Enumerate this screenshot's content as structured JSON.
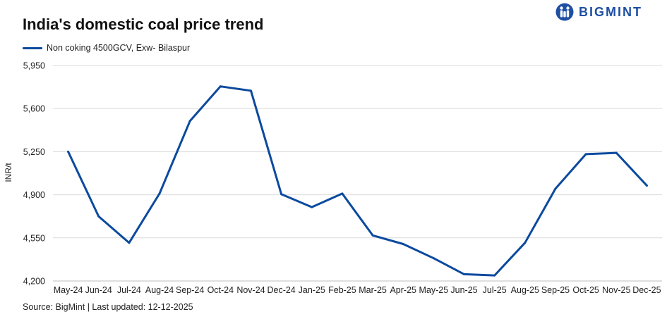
{
  "chart_data": {
    "type": "line",
    "title": "India's domestic coal price trend",
    "xlabel": "",
    "ylabel": "INR/t",
    "ylim": [
      4200,
      5950
    ],
    "yticks": [
      4200,
      4550,
      4900,
      5250,
      5600,
      5950
    ],
    "ytick_labels": [
      "4,200",
      "4,550",
      "4,900",
      "5,250",
      "5,600",
      "5,950"
    ],
    "grid": true,
    "legend_position": "top-left",
    "categories": [
      "May-24",
      "Jun-24",
      "Jul-24",
      "Aug-24",
      "Sep-24",
      "Oct-24",
      "Nov-24",
      "Dec-24",
      "Jan-25",
      "Feb-25",
      "Mar-25",
      "Apr-25",
      "May-25",
      "Jun-25",
      "Jul-25",
      "Aug-25",
      "Sep-25",
      "Oct-25",
      "Nov-25",
      "Dec-25"
    ],
    "series": [
      {
        "name": "Non coking 4500GCV, Exw- Bilaspur",
        "color": "#0b4a9e",
        "values": [
          5250,
          4725,
          4510,
          4910,
          5500,
          5780,
          5745,
          4905,
          4800,
          4910,
          4570,
          4500,
          4385,
          4255,
          4245,
          4510,
          4950,
          5230,
          5240,
          4975
        ]
      }
    ]
  },
  "header": {
    "title": "India's domestic coal price trend",
    "brand_name": "BIGMINT",
    "brand_icon": "bigmint-logo-icon"
  },
  "legend": {
    "label": "Non coking 4500GCV, Exw- Bilaspur"
  },
  "footer": {
    "source": "Source: BigMint | Last updated: 12-12-2025"
  },
  "colors": {
    "brand": "#1f4fa3",
    "line": "#0b4a9e",
    "grid": "#d9d9d9"
  }
}
